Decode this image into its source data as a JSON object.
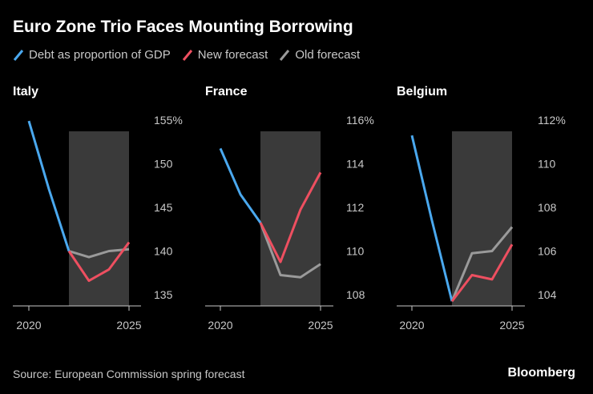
{
  "title": "Euro Zone Trio Faces Mounting Borrowing",
  "legend": [
    {
      "label": "Debt as proportion of GDP",
      "color": "#4aa8ee",
      "icon": "blue-line-icon"
    },
    {
      "label": "New forecast",
      "color": "#ee4f60",
      "icon": "red-line-icon"
    },
    {
      "label": "Old forecast",
      "color": "#9a9a9a",
      "icon": "gray-line-icon"
    }
  ],
  "source": "Source: European Commission spring forecast",
  "brand": "Bloomberg",
  "colors": {
    "debt": "#4aa8ee",
    "new": "#ee4f60",
    "old": "#9a9a9a",
    "shade": "#3a3a3a",
    "axis": "#c8c8c8"
  },
  "chart_data": [
    {
      "type": "line",
      "title": "Italy",
      "ylim": [
        133.5,
        156
      ],
      "yticks": [
        135,
        140,
        145,
        150,
        155
      ],
      "ytick_labels": [
        "135",
        "140",
        "145",
        "150",
        "155%"
      ],
      "xlim": [
        2020,
        2025
      ],
      "xticks": [
        2020,
        2025
      ],
      "xtick_labels": [
        "2020",
        "2025"
      ],
      "forecast_shade": [
        2022,
        2025
      ],
      "series": [
        {
          "key": "debt",
          "x": [
            2020,
            2021,
            2022
          ],
          "values": [
            154.9,
            147.1,
            140.0
          ]
        },
        {
          "key": "new",
          "x": [
            2022,
            2023,
            2024,
            2025
          ],
          "values": [
            140.0,
            136.6,
            137.9,
            141.0
          ]
        },
        {
          "key": "old",
          "x": [
            2022,
            2023,
            2024,
            2025
          ],
          "values": [
            140.0,
            139.3,
            140.0,
            140.2
          ]
        }
      ]
    },
    {
      "type": "line",
      "title": "France",
      "ylim": [
        107.4,
        116.1
      ],
      "yticks": [
        108,
        110,
        112,
        114,
        116
      ],
      "ytick_labels": [
        "108",
        "110",
        "112",
        "114",
        "116%"
      ],
      "xlim": [
        2020,
        2025
      ],
      "xticks": [
        2020,
        2025
      ],
      "xtick_labels": [
        "2020",
        "2025"
      ],
      "forecast_shade": [
        2022,
        2025
      ],
      "series": [
        {
          "key": "debt",
          "x": [
            2020,
            2021,
            2022
          ],
          "values": [
            114.7,
            112.6,
            111.3
          ]
        },
        {
          "key": "new",
          "x": [
            2022,
            2023,
            2024,
            2025
          ],
          "values": [
            111.3,
            109.5,
            111.9,
            113.6
          ]
        },
        {
          "key": "old",
          "x": [
            2022,
            2023,
            2024,
            2025
          ],
          "values": [
            111.3,
            108.9,
            108.8,
            109.4
          ]
        }
      ]
    },
    {
      "type": "line",
      "title": "Belgium",
      "ylim": [
        103.4,
        112
      ],
      "yticks": [
        104,
        106,
        108,
        110,
        112
      ],
      "ytick_labels": [
        "104",
        "106",
        "108",
        "110",
        "112%"
      ],
      "xlim": [
        2020,
        2025
      ],
      "xticks": [
        2020,
        2025
      ],
      "xtick_labels": [
        "2020",
        "2025"
      ],
      "forecast_shade": [
        2022,
        2025
      ],
      "series": [
        {
          "key": "debt",
          "x": [
            2020,
            2021,
            2022
          ],
          "values": [
            111.3,
            107.4,
            103.7
          ]
        },
        {
          "key": "new",
          "x": [
            2022,
            2023,
            2024,
            2025
          ],
          "values": [
            103.7,
            104.9,
            104.7,
            106.3
          ]
        },
        {
          "key": "old",
          "x": [
            2022,
            2023,
            2024,
            2025
          ],
          "values": [
            103.7,
            105.9,
            106.0,
            107.1
          ]
        }
      ]
    }
  ]
}
